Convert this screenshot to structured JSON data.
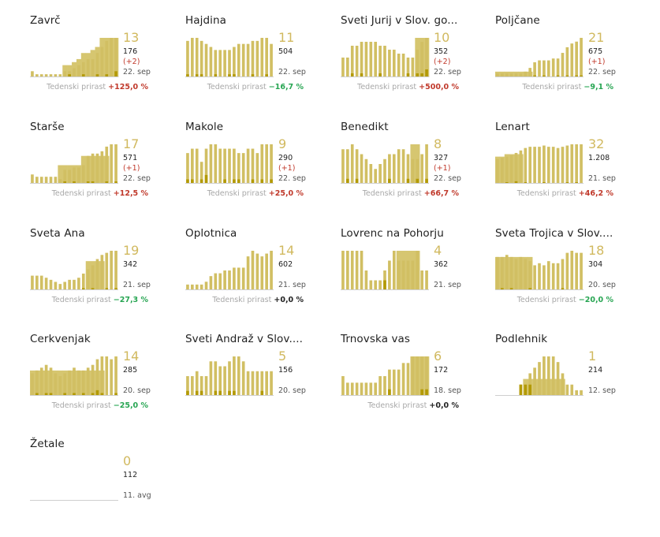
{
  "colors": {
    "area": "#d6c670",
    "bars": "#d1bf63",
    "dark": "#b39a06",
    "big_number": "#d1b95f",
    "positive": "#c0392b",
    "negative": "#27a552"
  },
  "growth_label": "Tedenski prirast",
  "chart_data": [
    {
      "type": "bar",
      "title": "Zavrč",
      "big": "13",
      "total": "176",
      "delta": "(+2)",
      "date": "22. sep",
      "growth": "+125,0 %",
      "trend": "pos",
      "area": [
        0,
        0,
        0,
        0,
        0,
        0,
        0,
        4,
        4,
        5,
        6,
        8,
        8,
        9,
        10,
        13,
        13,
        13,
        13
      ],
      "values": [
        2,
        1,
        1,
        1,
        1,
        1,
        1,
        2,
        2,
        3,
        4,
        5,
        6,
        6,
        8,
        10,
        12,
        13,
        13
      ],
      "new": [
        0,
        0,
        0,
        0,
        0,
        0,
        0,
        0,
        1,
        0,
        0,
        1,
        0,
        0,
        1,
        0,
        1,
        0,
        2
      ]
    },
    {
      "type": "bar",
      "title": "Hajdina",
      "big": "11",
      "total": "504",
      "delta": "",
      "date": "22. sep",
      "growth": "−16,7 %",
      "trend": "neg",
      "area": [
        0,
        0,
        0,
        0,
        0,
        0,
        0,
        0,
        0,
        0,
        0,
        0,
        0,
        0,
        0,
        0,
        0,
        0,
        0
      ],
      "values": [
        12,
        13,
        13,
        12,
        11,
        10,
        9,
        9,
        9,
        9,
        10,
        11,
        11,
        11,
        12,
        12,
        13,
        13,
        11
      ],
      "new": [
        1,
        0,
        1,
        1,
        0,
        0,
        1,
        0,
        0,
        1,
        1,
        0,
        0,
        0,
        1,
        0,
        0,
        1,
        0
      ]
    },
    {
      "type": "bar",
      "title": "Sveti Jurij v Slov. go...",
      "big": "10",
      "total": "352",
      "delta": "(+2)",
      "date": "22. sep",
      "growth": "+500,0 %",
      "trend": "pos",
      "area": [
        0,
        0,
        0,
        0,
        0,
        0,
        0,
        0,
        0,
        0,
        0,
        0,
        0,
        0,
        0,
        0,
        10,
        10,
        10
      ],
      "values": [
        5,
        5,
        8,
        8,
        9,
        9,
        9,
        9,
        8,
        8,
        7,
        7,
        6,
        6,
        5,
        5,
        7,
        9,
        10
      ],
      "new": [
        0,
        0,
        1,
        0,
        1,
        0,
        0,
        0,
        1,
        0,
        0,
        0,
        0,
        0,
        1,
        0,
        1,
        1,
        2
      ]
    },
    {
      "type": "bar",
      "title": "Poljčane",
      "big": "21",
      "total": "675",
      "delta": "(+1)",
      "date": "22. sep",
      "growth": "−9,1 %",
      "trend": "neg",
      "area": [
        3,
        3,
        3,
        3,
        3,
        3,
        3,
        3,
        0,
        0,
        0,
        0,
        0,
        0,
        0,
        0,
        0,
        0,
        0
      ],
      "values": [
        2,
        2,
        2,
        2,
        2,
        2,
        3,
        5,
        8,
        9,
        9,
        9,
        10,
        10,
        13,
        16,
        18,
        19,
        21
      ],
      "new": [
        0,
        0,
        0,
        0,
        0,
        0,
        0,
        0,
        1,
        0,
        1,
        0,
        0,
        1,
        0,
        1,
        0,
        1,
        1
      ]
    },
    {
      "type": "bar",
      "title": "Starše",
      "big": "17",
      "total": "571",
      "delta": "(+1)",
      "date": "22. sep",
      "growth": "+12,5 %",
      "trend": "pos",
      "area": [
        0,
        0,
        0,
        0,
        0,
        0,
        8,
        8,
        8,
        8,
        8,
        12,
        12,
        12,
        12,
        12,
        12,
        0,
        0
      ],
      "values": [
        4,
        3,
        3,
        3,
        3,
        3,
        2,
        6,
        6,
        7,
        7,
        8,
        12,
        13,
        13,
        14,
        16,
        17,
        17
      ],
      "new": [
        0,
        0,
        0,
        0,
        0,
        0,
        0,
        1,
        0,
        1,
        0,
        0,
        1,
        1,
        0,
        0,
        1,
        0,
        1
      ]
    },
    {
      "type": "bar",
      "title": "Makole",
      "big": "9",
      "total": "290",
      "delta": "(+1)",
      "date": "22. sep",
      "growth": "+25,0 %",
      "trend": "pos",
      "area": [
        0,
        0,
        0,
        0,
        0,
        0,
        0,
        0,
        0,
        0,
        0,
        0,
        0,
        0,
        0,
        0,
        0,
        0,
        0
      ],
      "values": [
        7,
        8,
        8,
        5,
        8,
        9,
        9,
        8,
        8,
        8,
        8,
        7,
        7,
        8,
        8,
        7,
        9,
        9,
        9
      ],
      "new": [
        1,
        1,
        0,
        1,
        2,
        0,
        0,
        0,
        1,
        0,
        1,
        1,
        0,
        0,
        1,
        0,
        1,
        0,
        1
      ]
    },
    {
      "type": "bar",
      "title": "Benedikt",
      "big": "8",
      "total": "327",
      "delta": "(+1)",
      "date": "22. sep",
      "growth": "+66,7 %",
      "trend": "pos",
      "area": [
        0,
        0,
        0,
        0,
        0,
        0,
        0,
        0,
        0,
        0,
        0,
        0,
        0,
        0,
        0,
        8,
        8,
        0,
        0
      ],
      "values": [
        7,
        7,
        8,
        7,
        6,
        5,
        4,
        3,
        4,
        5,
        6,
        6,
        7,
        7,
        6,
        5,
        5,
        6,
        8
      ],
      "new": [
        0,
        1,
        0,
        1,
        0,
        0,
        0,
        0,
        0,
        0,
        1,
        0,
        0,
        0,
        1,
        0,
        1,
        0,
        1
      ]
    },
    {
      "type": "bar",
      "title": "Lenart",
      "big": "32",
      "total": "1.208",
      "delta": "",
      "date": "21. sep",
      "growth": "+46,2 %",
      "trend": "pos",
      "area": [
        22,
        22,
        24,
        24,
        24,
        24,
        0,
        0,
        0,
        0,
        0,
        0,
        0,
        0,
        0,
        0,
        0,
        0,
        0
      ],
      "values": [
        20,
        21,
        22,
        23,
        25,
        27,
        29,
        30,
        30,
        30,
        31,
        30,
        30,
        29,
        30,
        31,
        32,
        32,
        32
      ],
      "new": [
        0,
        0,
        1,
        0,
        2,
        0,
        1,
        0,
        0,
        0,
        1,
        0,
        0,
        0,
        0,
        1,
        0,
        1,
        0
      ]
    },
    {
      "type": "bar",
      "title": "Sveta Ana",
      "big": "19",
      "total": "342",
      "delta": "",
      "date": "21. sep",
      "growth": "−27,3 %",
      "trend": "neg",
      "area": [
        0,
        0,
        0,
        0,
        0,
        0,
        0,
        0,
        0,
        0,
        0,
        0,
        14,
        14,
        14,
        14,
        0,
        0,
        0
      ],
      "values": [
        7,
        7,
        7,
        6,
        5,
        4,
        3,
        4,
        5,
        5,
        6,
        8,
        10,
        12,
        15,
        17,
        18,
        19,
        19
      ],
      "new": [
        0,
        0,
        0,
        0,
        0,
        0,
        0,
        0,
        0,
        0,
        0,
        1,
        0,
        1,
        0,
        0,
        1,
        0,
        1
      ]
    },
    {
      "type": "bar",
      "title": "Oplotnica",
      "big": "14",
      "total": "602",
      "delta": "",
      "date": "21. sep",
      "growth": "+0,0 %",
      "trend": "zero",
      "area": [
        0,
        0,
        0,
        0,
        0,
        0,
        0,
        0,
        0,
        0,
        0,
        0,
        0,
        0,
        0,
        0,
        0,
        0,
        0
      ],
      "values": [
        2,
        2,
        2,
        2,
        3,
        5,
        6,
        6,
        7,
        7,
        8,
        8,
        8,
        12,
        14,
        13,
        12,
        13,
        14
      ],
      "new": [
        0,
        0,
        0,
        0,
        0,
        0,
        0,
        0,
        0,
        0,
        0,
        0,
        0,
        0,
        0,
        0,
        0,
        0,
        0
      ]
    },
    {
      "type": "bar",
      "title": "Lovrenc na Pohorju",
      "big": "4",
      "total": "362",
      "delta": "",
      "date": "21. sep",
      "growth": "",
      "trend": "zero",
      "area": [
        0,
        0,
        0,
        0,
        0,
        0,
        0,
        0,
        0,
        0,
        0,
        0,
        4,
        4,
        4,
        4,
        4,
        0,
        0
      ],
      "values": [
        4,
        4,
        4,
        4,
        4,
        2,
        1,
        1,
        1,
        2,
        3,
        4,
        3,
        3,
        3,
        3,
        4,
        2,
        2
      ],
      "new": [
        0,
        0,
        0,
        0,
        0,
        0,
        0,
        0,
        0,
        1,
        0,
        0,
        0,
        0,
        0,
        0,
        0,
        0,
        0
      ]
    },
    {
      "type": "bar",
      "title": "Sveta Trojica v Slov....",
      "big": "18",
      "total": "304",
      "delta": "",
      "date": "20. sep",
      "growth": "−20,0 %",
      "trend": "neg",
      "area": [
        16,
        16,
        16,
        16,
        16,
        16,
        16,
        16,
        0,
        0,
        0,
        0,
        0,
        0,
        0,
        0,
        0,
        0,
        0
      ],
      "values": [
        16,
        16,
        17,
        16,
        15,
        16,
        15,
        14,
        12,
        13,
        12,
        14,
        13,
        13,
        15,
        18,
        19,
        18,
        18
      ],
      "new": [
        0,
        1,
        0,
        1,
        0,
        0,
        0,
        1,
        0,
        0,
        0,
        0,
        0,
        0,
        1,
        0,
        0,
        0,
        0
      ]
    },
    {
      "type": "bar",
      "title": "Cerkvenjak",
      "big": "14",
      "total": "285",
      "delta": "",
      "date": "20. sep",
      "growth": "−25,0 %",
      "trend": "neg",
      "area": [
        9,
        9,
        9,
        9,
        9,
        9,
        9,
        9,
        9,
        9,
        9,
        9,
        9,
        9,
        9,
        9,
        0,
        0,
        0
      ],
      "values": [
        8,
        9,
        10,
        11,
        10,
        8,
        7,
        8,
        9,
        10,
        9,
        9,
        10,
        11,
        13,
        14,
        14,
        13,
        14
      ],
      "new": [
        0,
        1,
        0,
        1,
        1,
        0,
        0,
        1,
        0,
        1,
        0,
        1,
        0,
        1,
        2,
        1,
        0,
        0,
        1
      ]
    },
    {
      "type": "bar",
      "title": "Sveti Andraž v Slov....",
      "big": "5",
      "total": "156",
      "delta": "",
      "date": "20. sep",
      "growth": "",
      "trend": "zero",
      "area": [
        0,
        0,
        0,
        0,
        0,
        0,
        0,
        0,
        0,
        0,
        0,
        0,
        0,
        0,
        0,
        0,
        0,
        0,
        0
      ],
      "values": [
        4,
        4,
        5,
        4,
        4,
        7,
        7,
        6,
        6,
        7,
        8,
        8,
        7,
        5,
        5,
        5,
        5,
        5,
        5
      ],
      "new": [
        1,
        0,
        1,
        1,
        0,
        0,
        1,
        1,
        0,
        1,
        1,
        0,
        0,
        0,
        0,
        0,
        1,
        0,
        0
      ]
    },
    {
      "type": "bar",
      "title": "Trnovska vas",
      "big": "6",
      "total": "172",
      "delta": "",
      "date": "18. sep",
      "growth": "+0,0 %",
      "trend": "zero",
      "area": [
        0,
        0,
        0,
        0,
        0,
        0,
        0,
        0,
        0,
        0,
        0,
        0,
        0,
        0,
        0,
        6,
        6,
        6,
        6
      ],
      "values": [
        3,
        2,
        2,
        2,
        2,
        2,
        2,
        2,
        3,
        3,
        4,
        4,
        4,
        5,
        5,
        6,
        6,
        6,
        6
      ],
      "new": [
        0,
        0,
        0,
        0,
        0,
        0,
        0,
        0,
        0,
        0,
        1,
        0,
        0,
        0,
        0,
        0,
        0,
        1,
        1
      ]
    },
    {
      "type": "bar",
      "title": "Podlehnik",
      "big": "1",
      "total": "214",
      "delta": "",
      "date": "12. sep",
      "growth": "",
      "trend": "zero",
      "area": [
        0,
        0,
        0,
        0,
        0,
        0,
        3,
        3,
        3,
        3,
        3,
        3,
        3,
        3,
        3,
        0,
        0,
        0,
        0
      ],
      "values": [
        0,
        0,
        0,
        0,
        0,
        2,
        2,
        4,
        5,
        6,
        7,
        7,
        7,
        6,
        4,
        2,
        2,
        1,
        1
      ],
      "new": [
        0,
        0,
        0,
        0,
        0,
        2,
        2,
        2,
        0,
        0,
        0,
        0,
        0,
        0,
        0,
        0,
        0,
        0,
        0
      ]
    },
    {
      "type": "bar",
      "title": "Žetale",
      "big": "0",
      "total": "112",
      "delta": "",
      "date": "11. avg",
      "growth": "",
      "trend": "zero",
      "area": [
        0,
        0,
        0,
        0,
        0,
        0,
        0,
        0,
        0,
        0,
        0,
        0,
        0,
        0,
        0,
        0,
        0,
        0,
        0
      ],
      "values": [
        0,
        0,
        0,
        0,
        0,
        0,
        0,
        0,
        0,
        0,
        0,
        0,
        0,
        0,
        0,
        0,
        0,
        0,
        0
      ],
      "new": [
        0,
        0,
        0,
        0,
        0,
        0,
        0,
        0,
        0,
        0,
        0,
        0,
        0,
        0,
        0,
        0,
        0,
        0,
        0
      ]
    }
  ]
}
